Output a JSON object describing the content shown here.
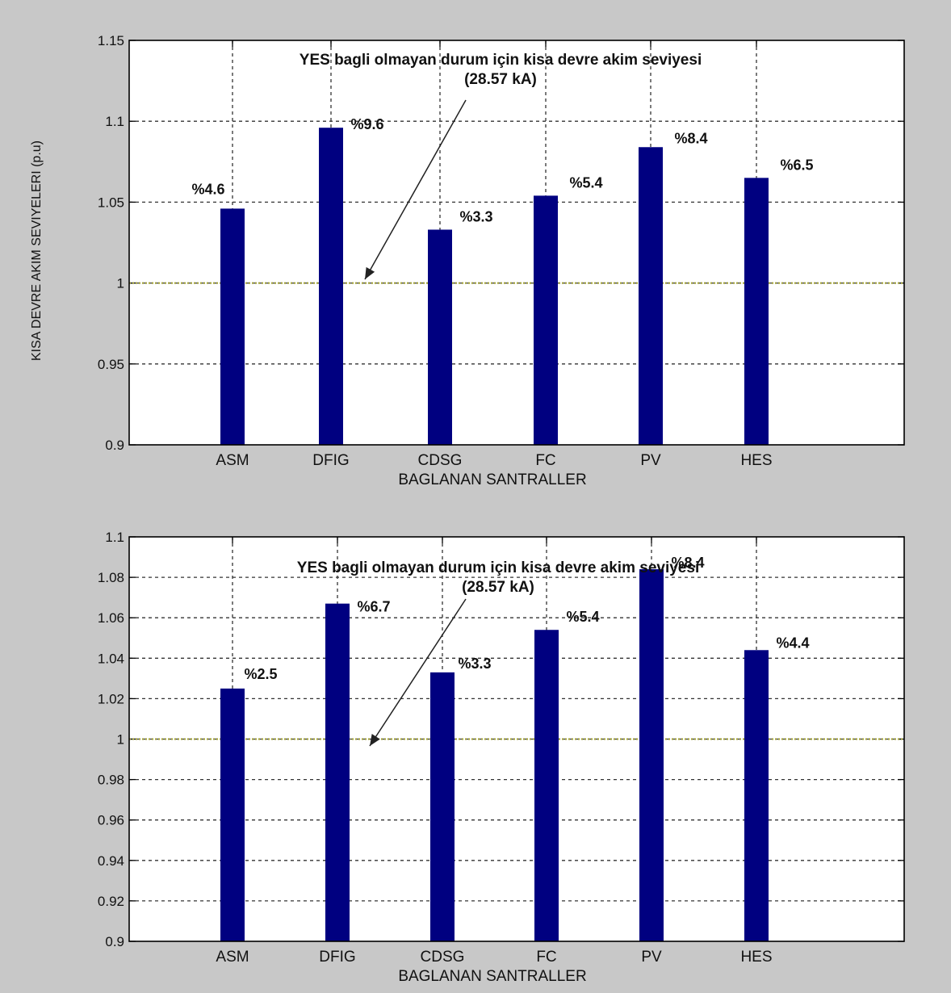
{
  "chart_data": [
    {
      "type": "bar",
      "categories": [
        "ASM",
        "DFIG",
        "CDSG",
        "FC",
        "PV",
        "HES"
      ],
      "values": [
        1.046,
        1.096,
        1.033,
        1.054,
        1.084,
        1.065
      ],
      "bar_labels": [
        "%4.6",
        "%9.6",
        "%3.3",
        "%5.4",
        "%8.4",
        "%6.5"
      ],
      "xlabel": "BAGLANAN SANTRALLER",
      "ylabel": "KISA DEVRE AKIM SEVIYELERI (p.u)",
      "ylim": [
        0.9,
        1.15
      ],
      "yticks": [
        0.9,
        0.95,
        1,
        1.05,
        1.1,
        1.15
      ],
      "ytick_labels": [
        "0.9",
        "0.95",
        "1",
        "1.05",
        "1.1",
        "1.15"
      ],
      "reference_line": 1,
      "annotation_line1": "YES bagli olmayan durum için kisa devre akim seviyesi",
      "annotation_line2": "(28.57 kA)",
      "grid": true,
      "bar_color": "#000080",
      "reference_color": "#9a9a2a"
    },
    {
      "type": "bar",
      "categories": [
        "ASM",
        "DFIG",
        "CDSG",
        "FC",
        "PV",
        "HES"
      ],
      "values": [
        1.025,
        1.067,
        1.033,
        1.054,
        1.084,
        1.044
      ],
      "bar_labels": [
        "%2.5",
        "%6.7",
        "%3.3",
        "%5.4",
        "%8.4",
        "%4.4"
      ],
      "xlabel": "BAGLANAN SANTRALLER",
      "ylabel": "",
      "ylim": [
        0.9,
        1.1
      ],
      "yticks": [
        0.9,
        0.92,
        0.94,
        0.96,
        0.98,
        1,
        1.02,
        1.04,
        1.06,
        1.08,
        1.1
      ],
      "ytick_labels": [
        "0.9",
        "0.92",
        "0.94",
        "0.96",
        "0.98",
        "1",
        "1.02",
        "1.04",
        "1.06",
        "1.08",
        "1.1"
      ],
      "reference_line": 1,
      "annotation_line1": "YES bagli olmayan durum için kisa devre akim seviyesi",
      "annotation_line2": "(28.57 kA)",
      "grid": true,
      "bar_color": "#000080",
      "reference_color": "#9a9a2a"
    }
  ]
}
